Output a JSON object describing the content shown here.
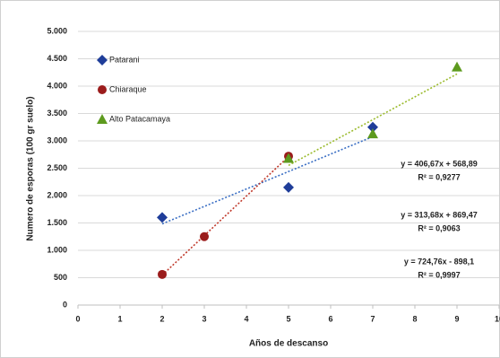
{
  "chart_data": {
    "type": "scatter",
    "xlabel": "Años de descanso",
    "ylabel": "Numero de esporas (100 gr suelo)",
    "xlim": [
      0,
      10
    ],
    "xticks": [
      0,
      1,
      2,
      3,
      4,
      5,
      6,
      7,
      8,
      9,
      10
    ],
    "ylim": [
      0,
      5000
    ],
    "yticks": [
      0,
      500,
      {
        "value": 1000,
        "label": "1.000"
      },
      {
        "value": 1500,
        "label": "1.500"
      },
      {
        "value": 2000,
        "label": "2.000"
      },
      {
        "value": 2500,
        "label": "2.500"
      },
      {
        "value": 3000,
        "label": "3.000"
      },
      {
        "value": 3500,
        "label": "3.500"
      },
      {
        "value": 4000,
        "label": "4.000"
      },
      {
        "value": 4500,
        "label": "4.500"
      },
      {
        "value": 5000,
        "label": "5.000"
      }
    ],
    "grid": true,
    "legend": "upper left",
    "series": [
      {
        "name": "Patarani",
        "color": "#1f3d99",
        "trend_color": "#3b6fc4",
        "marker": "diamond",
        "x": [
          2,
          5,
          7
        ],
        "values": [
          1600,
          2150,
          3250
        ],
        "equation": "y = 313,68x + 869,47",
        "r2": "R² = 0,9063"
      },
      {
        "name": "Chiaraque",
        "color": "#9b1c1c",
        "trend_color": "#c0392b",
        "marker": "circle",
        "x": [
          2,
          3,
          5
        ],
        "values": [
          560,
          1250,
          2720
        ],
        "equation": "y = 724,76x - 898,1",
        "r2": "R² = 0,9997"
      },
      {
        "name": "Alto Patacamaya",
        "color": "#5d9a1e",
        "trend_color": "#9bbb2e",
        "marker": "triangle",
        "x": [
          5,
          7,
          9
        ],
        "values": [
          2680,
          3130,
          4350
        ],
        "equation": "y = 406,67x + 568,89",
        "r2": "R² = 0,9277"
      }
    ]
  }
}
